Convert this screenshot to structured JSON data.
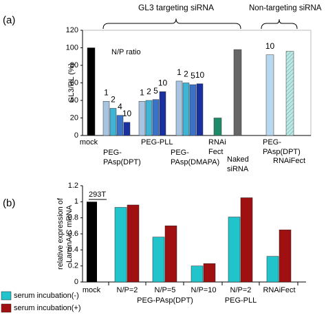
{
  "chart_data": [
    {
      "type": "bar",
      "panel": "(a)",
      "ylabel": "GL3/RL (%)",
      "ylim": [
        0,
        120
      ],
      "yticks": [
        0,
        20,
        40,
        60,
        80,
        100,
        120
      ],
      "annotations": [
        "GL3 targeting siRNA",
        "Non-targeting siRNA",
        "N/P ratio"
      ],
      "groups": [
        {
          "label": [
            "mock"
          ],
          "values": [
            100
          ],
          "np": [
            null
          ],
          "colors": [
            "#000000"
          ]
        },
        {
          "label": [
            "PEG-",
            "PAsp(DPT)"
          ],
          "values": [
            39,
            31,
            23,
            15
          ],
          "np": [
            "1",
            "2",
            "4",
            "10"
          ],
          "colors": [
            "#a8c4e0",
            "#3fb4d4",
            "#3a72c8",
            "#1830a0"
          ]
        },
        {
          "label": [
            "PEG-PLL"
          ],
          "values": [
            39,
            40,
            41,
            50
          ],
          "np": [
            "1",
            "2",
            "5",
            "10"
          ],
          "colors": [
            "#a8c4e0",
            "#3fb4d4",
            "#3a72c8",
            "#1830a0"
          ]
        },
        {
          "label": [
            "PEG-",
            "PAsp(DMAPA)"
          ],
          "values": [
            62,
            60,
            58,
            59
          ],
          "np": [
            "1",
            "2",
            "5",
            "10"
          ],
          "colors": [
            "#a8c4e0",
            "#3fb4d4",
            "#3a72c8",
            "#1830a0"
          ]
        },
        {
          "label": [
            "RNAi",
            "Fect"
          ],
          "values": [
            20
          ],
          "np": [
            null
          ],
          "colors": [
            "#1f8a6a"
          ]
        },
        {
          "label": [
            "Naked",
            "siRNA"
          ],
          "values": [
            98
          ],
          "np": [
            null
          ],
          "colors": [
            "#666666"
          ]
        },
        {
          "label": [
            "PEG-",
            "PAsp(DPT)"
          ],
          "values": [
            92
          ],
          "np": [
            "10"
          ],
          "colors": [
            "#b8d8f0"
          ]
        },
        {
          "label": [
            "RNAiFect"
          ],
          "values": [
            96
          ],
          "np": [
            null
          ],
          "colors": [
            "hatch"
          ]
        }
      ]
    },
    {
      "type": "grouped-bar",
      "panel": "(b)",
      "ylabel": [
        "relative expression of",
        "LaminA/C mRNA"
      ],
      "ylim": [
        0,
        1.2
      ],
      "yticks": [
        0,
        0.2,
        0.4,
        0.6,
        0.8,
        1,
        1.2
      ],
      "annotation": "293T",
      "mock": {
        "label": "mock",
        "value": 1,
        "color": "#000000"
      },
      "categories": [
        "N/P=2",
        "N/P=5",
        "N/P=10",
        "N/P=2",
        "RNAiFect"
      ],
      "group_labels": [
        "PEG-PAsp(DPT)",
        "PEG-PLL"
      ],
      "series": [
        {
          "name": "serum incubation(-)",
          "color": "#22c4cc",
          "values": [
            0.93,
            0.56,
            0.2,
            0.81,
            0.32
          ]
        },
        {
          "name": "serum incubation(+)",
          "color": "#a01010",
          "values": [
            0.96,
            0.7,
            0.23,
            1.05,
            0.65
          ]
        }
      ]
    }
  ]
}
